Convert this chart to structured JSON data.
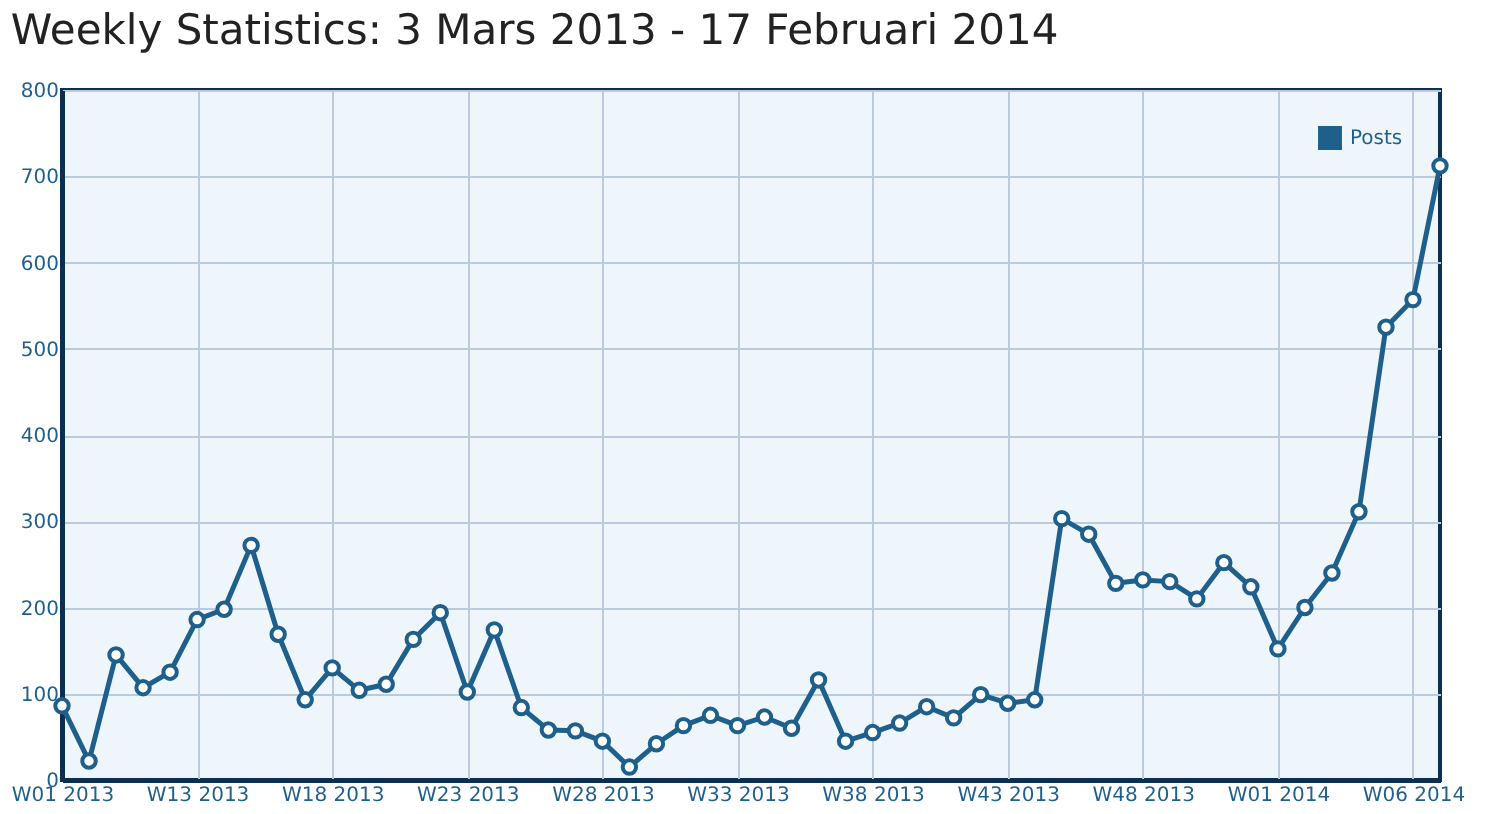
{
  "chart_data": {
    "type": "line",
    "title": "Weekly Statistics: 3 Mars 2013 - 17 Februari 2014",
    "categories": [
      "W01 2013",
      null,
      null,
      null,
      null,
      "W13 2013",
      null,
      null,
      null,
      null,
      "W18 2013",
      null,
      null,
      null,
      null,
      "W23 2013",
      null,
      null,
      null,
      null,
      "W28 2013",
      null,
      null,
      null,
      null,
      "W33 2013",
      null,
      null,
      null,
      null,
      "W38 2013",
      null,
      null,
      null,
      null,
      "W43 2013",
      null,
      null,
      null,
      null,
      "W48 2013",
      null,
      null,
      null,
      null,
      "W01 2014",
      null,
      null,
      null,
      null,
      "W06 2014",
      null
    ],
    "series": [
      {
        "name": "Posts",
        "color": "#1f5f8b",
        "values": [
          86,
          22,
          145,
          107,
          125,
          186,
          198,
          272,
          169,
          93,
          130,
          104,
          111,
          163,
          194,
          102,
          174,
          84,
          58,
          57,
          45,
          15,
          42,
          63,
          75,
          63,
          73,
          60,
          116,
          45,
          55,
          66,
          85,
          72,
          99,
          89,
          93,
          303,
          285,
          228,
          232,
          230,
          210,
          252,
          224,
          152,
          200,
          240,
          311,
          525,
          557,
          712
        ]
      }
    ],
    "ylim": [
      0,
      800
    ],
    "yticks": [
      0,
      100,
      200,
      300,
      400,
      500,
      600,
      700,
      800
    ],
    "grid": true,
    "legend": "top right",
    "marker": "circle",
    "line_style": "solid"
  }
}
